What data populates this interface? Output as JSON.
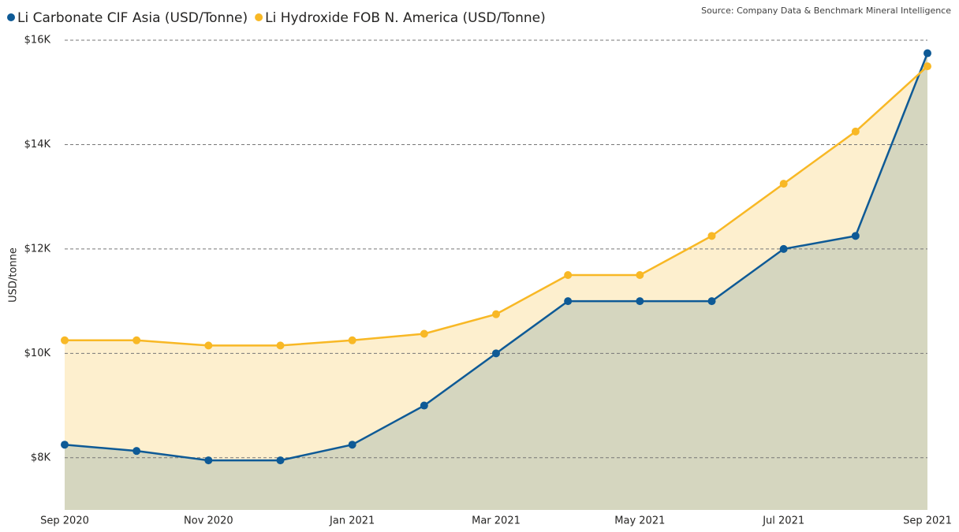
{
  "chart_data": {
    "type": "line",
    "source": "Source: Company Data & Benchmark Mineral Intelligence",
    "ylabel": "USD/tonne",
    "categories": [
      "Sep 2020",
      null,
      "Nov 2020",
      null,
      "Jan 2021",
      null,
      "Mar 2021",
      null,
      "May 2021",
      null,
      "Jul 2021",
      null,
      "Sep 2021"
    ],
    "series": [
      {
        "name": "Li Carbonate CIF Asia (USD/Tonne)",
        "color": "#0e5a96",
        "area_color": "#d5d6bf",
        "values": [
          8250,
          8130,
          7950,
          7950,
          8250,
          9000,
          10000,
          11000,
          11000,
          11000,
          12000,
          12250,
          15750
        ]
      },
      {
        "name": "Li Hydroxide FOB N. America (USD/Tonne)",
        "color": "#f8b825",
        "area_color": "#fdefce",
        "values": [
          10250,
          10250,
          10150,
          10150,
          10250,
          10375,
          10750,
          11500,
          11500,
          12250,
          13250,
          14250,
          15500
        ]
      }
    ],
    "ylim": [
      7000,
      16000
    ],
    "yticks": [
      {
        "value": 8000,
        "label": "$8K"
      },
      {
        "value": 10000,
        "label": "$10K"
      },
      {
        "value": 12000,
        "label": "$12K"
      },
      {
        "value": 14000,
        "label": "$14K"
      },
      {
        "value": 16000,
        "label": "$16K"
      }
    ],
    "grid": true
  }
}
